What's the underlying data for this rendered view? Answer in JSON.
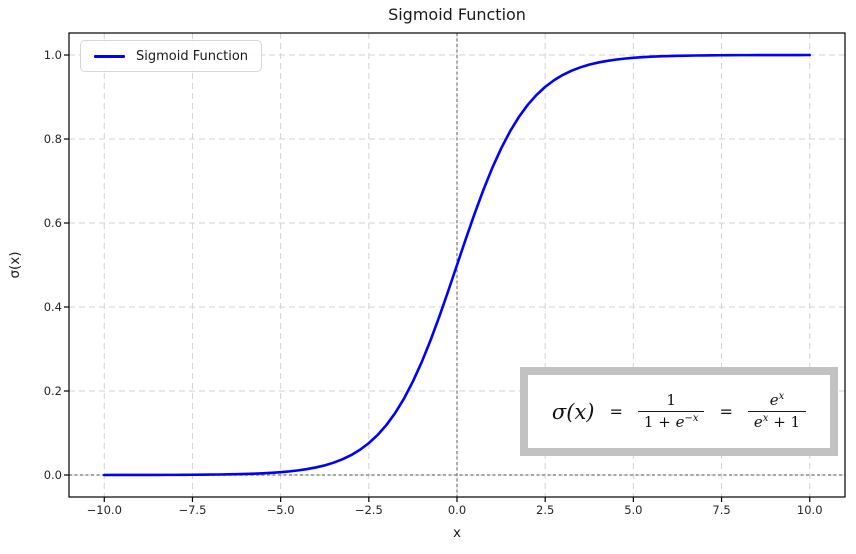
{
  "colors": {
    "curve": "#0000ff",
    "grid": "#d3d3d3",
    "reference_line": "#8a8a8a",
    "axes_frame": "#000000",
    "formula_box_border": "#c2c2c2",
    "legend_border": "#d6d6d6",
    "background": "#ffffff"
  },
  "formula": {
    "lhs": "σ(x)",
    "equals": "=",
    "frac1": {
      "num": "1",
      "den_pre": "1 + ",
      "den_base": "e",
      "den_sup": "−x"
    },
    "equals2": "=",
    "frac2": {
      "num_base": "e",
      "num_sup": "x",
      "den_base": "e",
      "den_sup": "x",
      "den_post": " + 1"
    }
  },
  "chart_data": {
    "type": "line",
    "title": "Sigmoid Function",
    "xlabel": "x",
    "ylabel": "σ(x)",
    "xlim": [
      -11,
      11
    ],
    "ylim": [
      -0.0524,
      1.0524
    ],
    "grid": true,
    "grid_style": "dashed",
    "legend_position": "upper left",
    "annotation_text": "σ(x) = 1/(1+e^−x) = e^x/(e^x+1)",
    "reference_lines": [
      {
        "axis": "x",
        "value": 0,
        "style": "dashed",
        "color": "#8a8a8a"
      },
      {
        "axis": "y",
        "value": 0,
        "style": "dashed",
        "color": "#8a8a8a"
      }
    ],
    "xticks": {
      "values": [
        -10,
        -7.5,
        -5,
        -2.5,
        0,
        2.5,
        5,
        7.5,
        10
      ],
      "labels": [
        "−10.0",
        "−7.5",
        "−5.0",
        "−2.5",
        "0.0",
        "2.5",
        "5.0",
        "7.5",
        "10.0"
      ]
    },
    "yticks": {
      "values": [
        0,
        0.2,
        0.4,
        0.6,
        0.8,
        1.0
      ],
      "labels": [
        "0.0",
        "0.2",
        "0.4",
        "0.6",
        "0.8",
        "1.0"
      ]
    },
    "series": [
      {
        "name": "Sigmoid Function",
        "color": "#0000ff",
        "line_width": 2.6,
        "x": [
          -10,
          -9.75,
          -9.5,
          -9.25,
          -9,
          -8.75,
          -8.5,
          -8.25,
          -8,
          -7.75,
          -7.5,
          -7.25,
          -7,
          -6.75,
          -6.5,
          -6.25,
          -6,
          -5.75,
          -5.5,
          -5.25,
          -5,
          -4.75,
          -4.5,
          -4.25,
          -4,
          -3.75,
          -3.5,
          -3.25,
          -3,
          -2.75,
          -2.5,
          -2.25,
          -2,
          -1.75,
          -1.5,
          -1.25,
          -1,
          -0.75,
          -0.5,
          -0.25,
          0,
          0.25,
          0.5,
          0.75,
          1,
          1.25,
          1.5,
          1.75,
          2,
          2.25,
          2.5,
          2.75,
          3,
          3.25,
          3.5,
          3.75,
          4,
          4.25,
          4.5,
          4.75,
          5,
          5.25,
          5.5,
          5.75,
          6,
          6.25,
          6.5,
          6.75,
          7,
          7.25,
          7.5,
          7.75,
          8,
          8.25,
          8.5,
          8.75,
          9,
          9.25,
          9.5,
          9.75,
          10
        ],
        "y": [
          0.0,
          0.0001,
          0.0001,
          0.0001,
          0.0001,
          0.0002,
          0.0002,
          0.0003,
          0.0003,
          0.0004,
          0.0006,
          0.0007,
          0.0009,
          0.0012,
          0.0015,
          0.0019,
          0.0025,
          0.0032,
          0.0041,
          0.0052,
          0.0067,
          0.0086,
          0.011,
          0.0141,
          0.018,
          0.023,
          0.0293,
          0.0373,
          0.0474,
          0.0601,
          0.0759,
          0.0954,
          0.1192,
          0.148,
          0.1824,
          0.2227,
          0.2689,
          0.3208,
          0.3775,
          0.4378,
          0.5,
          0.5622,
          0.6225,
          0.6792,
          0.7311,
          0.7773,
          0.8176,
          0.852,
          0.8808,
          0.9046,
          0.9241,
          0.9399,
          0.9526,
          0.9627,
          0.9707,
          0.977,
          0.982,
          0.9859,
          0.989,
          0.9914,
          0.9933,
          0.9948,
          0.9959,
          0.9968,
          0.9975,
          0.9981,
          0.9985,
          0.9988,
          0.9991,
          0.9993,
          0.9994,
          0.9996,
          0.9997,
          0.9997,
          0.9998,
          0.9998,
          0.9999,
          0.9999,
          0.9999,
          0.9999,
          1.0
        ]
      }
    ]
  }
}
